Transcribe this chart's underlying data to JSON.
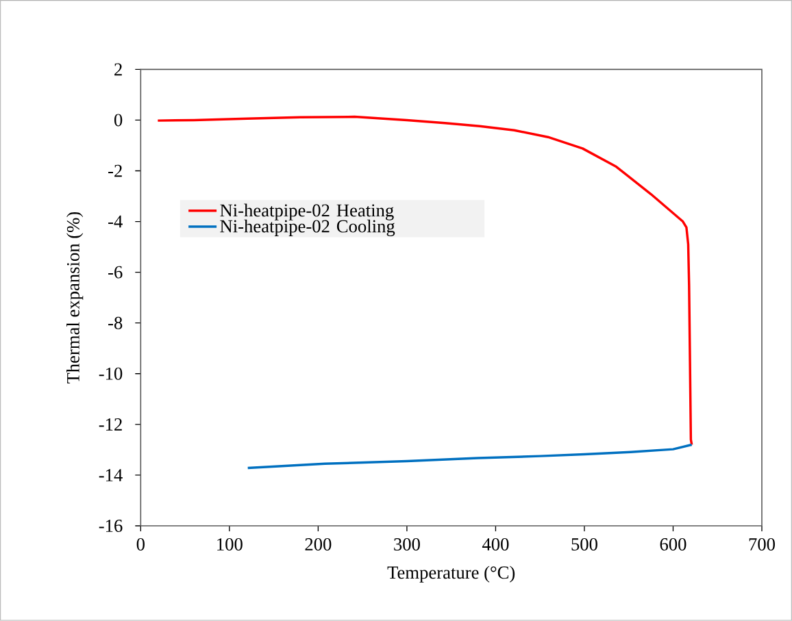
{
  "chart_data": {
    "type": "line",
    "xlabel": "Temperature (°C)",
    "ylabel": "Thermal expansion (%)",
    "xlim": [
      0,
      700
    ],
    "xticks": [
      0,
      100,
      200,
      300,
      400,
      500,
      600,
      700
    ],
    "ylim": [
      -16,
      2
    ],
    "yticks": [
      -16,
      -14,
      -12,
      -10,
      -8,
      -6,
      -4,
      -2,
      0,
      2
    ],
    "grid": false,
    "legend": "top left",
    "marker": "none",
    "line_style": "solid",
    "series": [
      {
        "name": "Ni-heatpipe-02 Heating",
        "color": "#ff0000",
        "x": [
          19.3,
          60,
          120,
          180,
          241,
          300,
          343,
          382,
          421,
          459,
          498,
          536,
          575,
          611,
          615,
          617,
          618,
          619,
          620,
          621
        ],
        "values": [
          -0.02,
          0.0,
          0.06,
          0.11,
          0.13,
          0.0,
          -0.12,
          -0.24,
          -0.4,
          -0.67,
          -1.12,
          -1.84,
          -2.92,
          -4.0,
          -4.23,
          -4.9,
          -6.5,
          -9.5,
          -12.6,
          -12.8
        ]
      },
      {
        "name": "Ni-heatpipe-02 Cooling",
        "color": "#0070c0",
        "x": [
          621,
          600,
          552,
          500,
          450,
          380,
          300,
          207.6,
          120.7
        ],
        "values": [
          -12.8,
          -12.98,
          -13.09,
          -13.18,
          -13.25,
          -13.33,
          -13.45,
          -13.55,
          -13.72
        ]
      }
    ]
  }
}
